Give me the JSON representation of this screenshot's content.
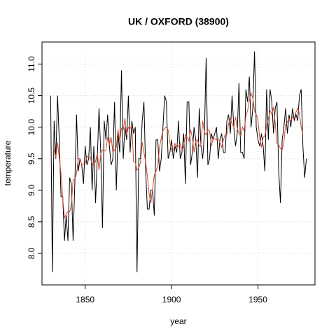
{
  "chart_data": {
    "type": "line",
    "title": "UK / OXFORD (38900)",
    "xlabel": "year",
    "ylabel": "temperature",
    "x": [
      1830,
      1831,
      1832,
      1833,
      1834,
      1835,
      1836,
      1837,
      1838,
      1839,
      1840,
      1841,
      1842,
      1843,
      1844,
      1845,
      1846,
      1847,
      1848,
      1849,
      1850,
      1851,
      1852,
      1853,
      1854,
      1855,
      1856,
      1857,
      1858,
      1859,
      1860,
      1861,
      1862,
      1863,
      1864,
      1865,
      1866,
      1867,
      1868,
      1869,
      1870,
      1871,
      1872,
      1873,
      1874,
      1875,
      1876,
      1877,
      1878,
      1879,
      1880,
      1881,
      1882,
      1883,
      1884,
      1885,
      1886,
      1887,
      1888,
      1889,
      1890,
      1891,
      1892,
      1893,
      1894,
      1895,
      1896,
      1897,
      1898,
      1899,
      1900,
      1901,
      1902,
      1903,
      1904,
      1905,
      1906,
      1907,
      1908,
      1909,
      1910,
      1911,
      1912,
      1913,
      1914,
      1915,
      1916,
      1917,
      1918,
      1919,
      1920,
      1921,
      1922,
      1923,
      1924,
      1925,
      1926,
      1927,
      1928,
      1929,
      1930,
      1931,
      1932,
      1933,
      1934,
      1935,
      1936,
      1937,
      1938,
      1939,
      1940,
      1941,
      1942,
      1943,
      1944,
      1945,
      1946,
      1947,
      1948,
      1949,
      1950,
      1951,
      1952,
      1953,
      1954,
      1955,
      1956,
      1957,
      1958,
      1959,
      1960,
      1961,
      1962,
      1963,
      1964,
      1965,
      1966,
      1967,
      1968,
      1969,
      1970,
      1971,
      1972,
      1973,
      1974,
      1975,
      1976,
      1977,
      1978
    ],
    "series": [
      {
        "color": "#000000",
        "values": [
          10.5,
          7.7,
          10.1,
          9.5,
          10.5,
          9.8,
          8.9,
          8.9,
          8.2,
          8.6,
          8.2,
          9.2,
          9.1,
          8.2,
          9.1,
          10.2,
          9.3,
          9.5,
          9.4,
          9.1,
          9.7,
          9.4,
          9.5,
          10.0,
          9.0,
          9.7,
          8.8,
          9.5,
          10.3,
          9.6,
          8.4,
          10.1,
          9.8,
          10.2,
          9.7,
          9.4,
          9.5,
          10.4,
          9.0,
          9.9,
          9.6,
          10.9,
          9.5,
          10.0,
          9.8,
          10.5,
          9.6,
          10.1,
          9.9,
          10.0,
          7.7,
          9.5,
          9.5,
          10.1,
          10.4,
          9.3,
          8.7,
          8.7,
          9.0,
          9.0,
          8.6,
          9.8,
          9.8,
          9.3,
          9.5,
          10.0,
          10.5,
          10.4,
          9.5,
          9.6,
          9.8,
          9.5,
          9.7,
          9.6,
          10.1,
          9.5,
          9.6,
          9.9,
          9.1,
          10.4,
          10.4,
          9.4,
          9.6,
          10.0,
          9.8,
          9.2,
          10.3,
          9.7,
          9.5,
          9.9,
          11.1,
          9.4,
          9.5,
          9.9,
          9.8,
          9.9,
          10.0,
          9.5,
          9.8,
          9.9,
          9.6,
          9.6,
          10.1,
          10.2,
          9.9,
          10.5,
          10.0,
          9.7,
          9.9,
          10.7,
          9.6,
          9.6,
          9.5,
          10.6,
          10.4,
          10.8,
          10.0,
          10.3,
          11.2,
          10.0,
          9.8,
          9.7,
          9.9,
          9.7,
          9.3,
          10.6,
          9.8,
          10.6,
          10.4,
          9.9,
          10.3,
          10.4,
          9.3,
          8.8,
          9.8,
          10.0,
          10.3,
          9.9,
          10.2,
          10.0,
          10.3,
          10.1,
          10.2,
          10.1,
          10.5,
          10.6,
          9.7,
          9.2,
          9.5
        ]
      },
      {
        "color": "#d9472f",
        "values": [
          null,
          null,
          9.66,
          9.52,
          9.76,
          9.52,
          9.26,
          8.88,
          8.56,
          8.62,
          8.66,
          8.66,
          8.76,
          9.16,
          9.18,
          9.26,
          9.5,
          9.5,
          9.4,
          9.42,
          9.42,
          9.54,
          9.52,
          9.52,
          9.4,
          9.4,
          9.46,
          9.58,
          9.32,
          9.58,
          9.64,
          9.62,
          9.64,
          9.84,
          9.72,
          9.84,
          9.6,
          9.64,
          9.68,
          9.96,
          9.78,
          9.98,
          9.96,
          10.14,
          9.88,
          10.0,
          9.98,
          10.02,
          9.46,
          9.44,
          9.32,
          9.36,
          9.44,
          9.76,
          9.6,
          9.44,
          9.22,
          8.94,
          8.8,
          9.02,
          9.24,
          9.3,
          9.4,
          9.68,
          9.82,
          9.94,
          9.98,
          10.0,
          9.96,
          9.76,
          9.62,
          9.64,
          9.74,
          9.68,
          9.7,
          9.74,
          9.64,
          9.7,
          9.88,
          9.84,
          9.78,
          9.96,
          9.84,
          9.6,
          9.78,
          9.8,
          9.7,
          9.72,
          10.1,
          9.92,
          9.88,
          9.96,
          9.94,
          9.7,
          9.82,
          9.82,
          9.8,
          9.82,
          9.76,
          9.68,
          9.8,
          9.88,
          9.88,
          10.06,
          10.14,
          10.06,
          10.0,
          10.16,
          9.98,
          9.9,
          9.86,
          10.0,
          9.94,
          10.18,
          10.26,
          10.42,
          10.54,
          10.46,
          10.26,
          10.2,
          10.12,
          9.82,
          9.68,
          9.84,
          9.86,
          10.0,
          10.14,
          10.26,
          10.2,
          10.32,
          10.06,
          9.74,
          9.72,
          9.66,
          9.64,
          9.76,
          10.04,
          10.08,
          10.14,
          10.1,
          10.16,
          10.14,
          10.24,
          10.3,
          10.22,
          10.0,
          9.88,
          null,
          null
        ]
      }
    ],
    "xlim": [
      1825,
      1983
    ],
    "xticks": [
      1850,
      1900,
      1950
    ],
    "ylim": [
      7.5,
      11.35
    ],
    "yticks": [
      {
        "value": 8,
        "label": "8.0"
      },
      8.5,
      {
        "value": 9,
        "label": "9.0"
      },
      9.5,
      {
        "value": 10,
        "label": "10.0"
      },
      10.5,
      {
        "value": 11,
        "label": "11.0"
      }
    ],
    "grid": true
  }
}
